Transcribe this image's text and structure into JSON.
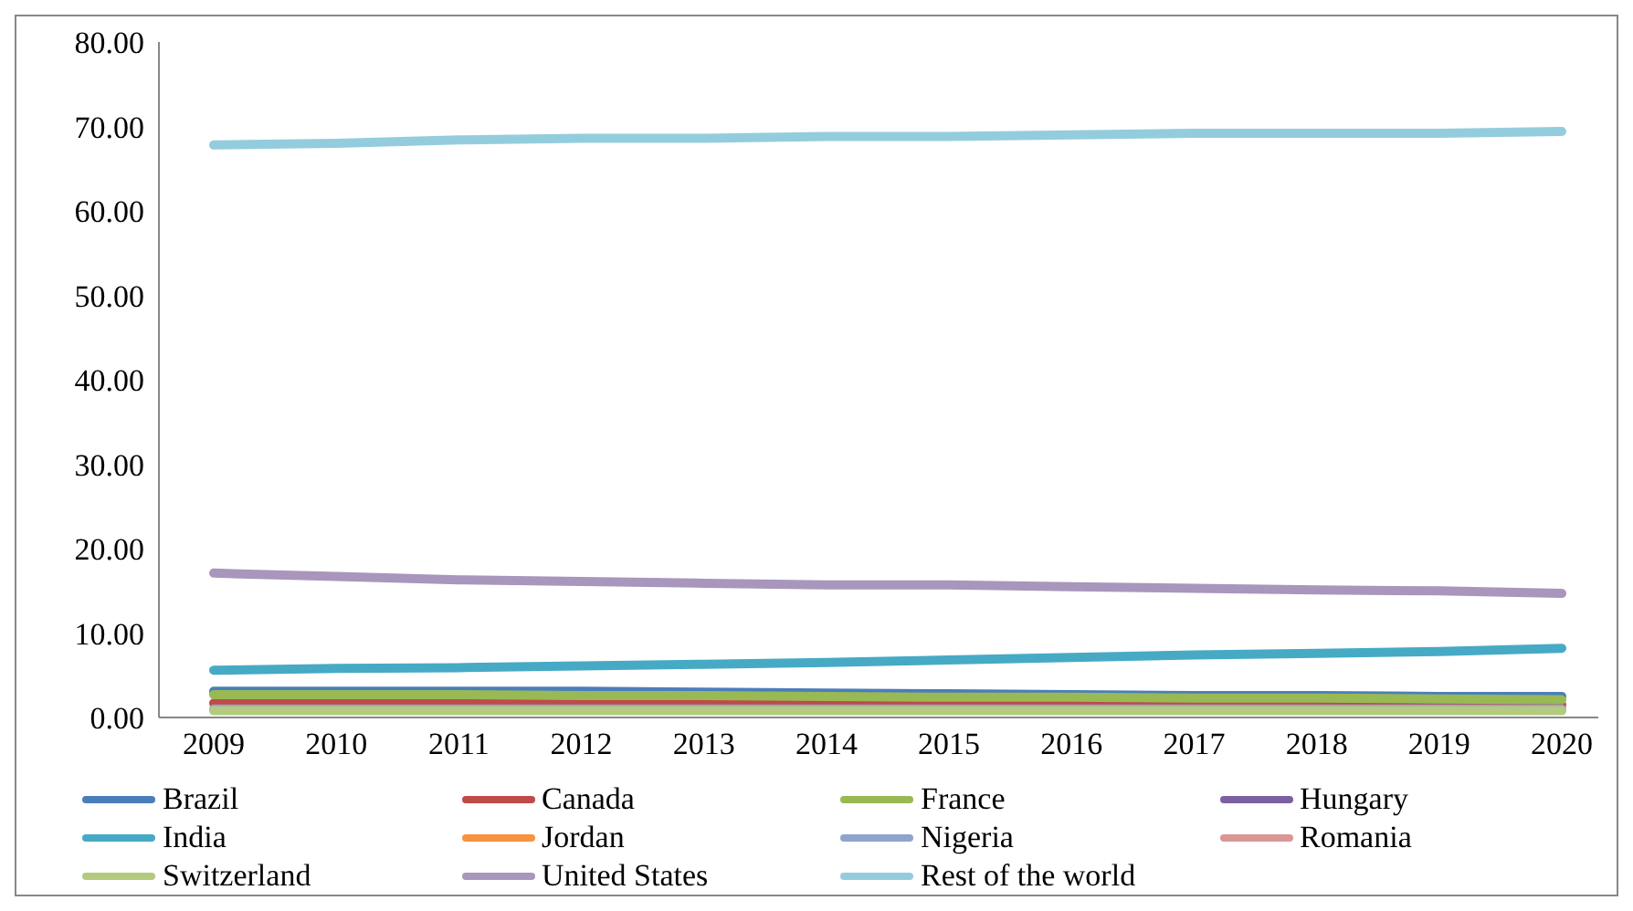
{
  "chart_data": {
    "type": "line",
    "categories": [
      "2009",
      "2010",
      "2011",
      "2012",
      "2013",
      "2014",
      "2015",
      "2016",
      "2017",
      "2018",
      "2019",
      "2020"
    ],
    "ylim": [
      0,
      80
    ],
    "yticks": [
      {
        "value": 0,
        "label": "0.00"
      },
      {
        "value": 10,
        "label": "10.00"
      },
      {
        "value": 20,
        "label": "20.00"
      },
      {
        "value": 30,
        "label": "30.00"
      },
      {
        "value": 40,
        "label": "40.00"
      },
      {
        "value": 50,
        "label": "50.00"
      },
      {
        "value": 60,
        "label": "60.00"
      },
      {
        "value": 70,
        "label": "70.00"
      },
      {
        "value": 80,
        "label": "80.00"
      }
    ],
    "grid": false,
    "legend": "bottom",
    "marker": "none",
    "line_style": "solid",
    "series": [
      {
        "name": "Brazil",
        "color": "#4a7ebb",
        "values": [
          3.1,
          3.1,
          3.1,
          3.1,
          3.0,
          2.9,
          2.8,
          2.7,
          2.6,
          2.6,
          2.5,
          2.5
        ]
      },
      {
        "name": "Canada",
        "color": "#be4b48",
        "values": [
          1.7,
          1.7,
          1.7,
          1.7,
          1.7,
          1.6,
          1.6,
          1.6,
          1.6,
          1.5,
          1.5,
          1.5
        ]
      },
      {
        "name": "France",
        "color": "#98b954",
        "values": [
          2.7,
          2.7,
          2.7,
          2.6,
          2.6,
          2.5,
          2.4,
          2.4,
          2.3,
          2.3,
          2.2,
          2.1
        ]
      },
      {
        "name": "Hungary",
        "color": "#7d60a0",
        "values": [
          null,
          null,
          null,
          null,
          null,
          null,
          null,
          null,
          null,
          null,
          null,
          null
        ]
      },
      {
        "name": "India",
        "color": "#46aac5",
        "values": [
          5.6,
          5.8,
          5.9,
          6.1,
          6.3,
          6.5,
          6.8,
          7.1,
          7.4,
          7.6,
          7.8,
          8.2
        ]
      },
      {
        "name": "Jordan",
        "color": "#f69240",
        "values": [
          null,
          null,
          null,
          null,
          null,
          null,
          null,
          null,
          null,
          null,
          null,
          null
        ]
      },
      {
        "name": "Nigeria",
        "color": "#8ea5cb",
        "values": [
          1.0,
          1.0,
          1.0,
          1.0,
          1.0,
          1.0,
          1.0,
          1.0,
          1.0,
          1.0,
          1.0,
          1.0
        ]
      },
      {
        "name": "Romania",
        "color": "#d99694",
        "values": [
          null,
          null,
          null,
          null,
          null,
          null,
          null,
          null,
          null,
          null,
          null,
          null
        ]
      },
      {
        "name": "Switzerland",
        "color": "#b3ca7f",
        "values": [
          0.8,
          0.8,
          0.8,
          0.8,
          0.8,
          0.8,
          0.8,
          0.8,
          0.8,
          0.8,
          0.8,
          0.8
        ]
      },
      {
        "name": "United States",
        "color": "#a896bc",
        "values": [
          17.1,
          16.7,
          16.3,
          16.1,
          15.9,
          15.7,
          15.7,
          15.5,
          15.3,
          15.1,
          15.0,
          14.7
        ]
      },
      {
        "name": "Rest of the world",
        "color": "#93cddd",
        "values": [
          67.8,
          68.0,
          68.4,
          68.6,
          68.6,
          68.8,
          68.8,
          69.0,
          69.2,
          69.2,
          69.2,
          69.4
        ]
      }
    ]
  }
}
